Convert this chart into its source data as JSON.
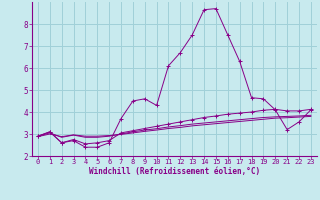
{
  "xlabel": "Windchill (Refroidissement éolien,°C)",
  "bg_color": "#c8eaee",
  "grid_color": "#a0d0d8",
  "line_color": "#880088",
  "x_values": [
    0,
    1,
    2,
    3,
    4,
    5,
    6,
    7,
    8,
    9,
    10,
    11,
    12,
    13,
    14,
    15,
    16,
    17,
    18,
    19,
    20,
    21,
    22,
    23
  ],
  "line1": [
    2.9,
    3.1,
    2.6,
    2.7,
    2.4,
    2.4,
    2.6,
    3.7,
    4.5,
    4.6,
    4.3,
    6.1,
    6.7,
    7.5,
    8.65,
    8.7,
    7.5,
    6.3,
    4.65,
    4.6,
    4.1,
    3.2,
    3.55,
    4.1
  ],
  "line2": [
    2.9,
    3.1,
    2.6,
    2.75,
    2.55,
    2.6,
    2.7,
    3.05,
    3.15,
    3.25,
    3.35,
    3.45,
    3.55,
    3.65,
    3.75,
    3.82,
    3.9,
    3.95,
    4.0,
    4.08,
    4.12,
    4.05,
    4.05,
    4.12
  ],
  "line3": [
    2.9,
    3.05,
    2.85,
    2.95,
    2.85,
    2.85,
    2.9,
    3.0,
    3.1,
    3.18,
    3.24,
    3.32,
    3.38,
    3.45,
    3.5,
    3.55,
    3.6,
    3.65,
    3.7,
    3.75,
    3.78,
    3.8,
    3.82,
    3.85
  ],
  "line4": [
    2.88,
    3.0,
    2.88,
    2.96,
    2.9,
    2.9,
    2.93,
    2.98,
    3.05,
    3.12,
    3.18,
    3.25,
    3.3,
    3.37,
    3.42,
    3.47,
    3.52,
    3.57,
    3.62,
    3.67,
    3.72,
    3.74,
    3.77,
    3.8
  ],
  "xlim": [
    -0.5,
    23.5
  ],
  "ylim": [
    2.0,
    9.0
  ],
  "yticks": [
    2,
    3,
    4,
    5,
    6,
    7,
    8
  ],
  "xticks": [
    0,
    1,
    2,
    3,
    4,
    5,
    6,
    7,
    8,
    9,
    10,
    11,
    12,
    13,
    14,
    15,
    16,
    17,
    18,
    19,
    20,
    21,
    22,
    23
  ],
  "tick_fontsize": 5.0,
  "xlabel_fontsize": 5.5
}
